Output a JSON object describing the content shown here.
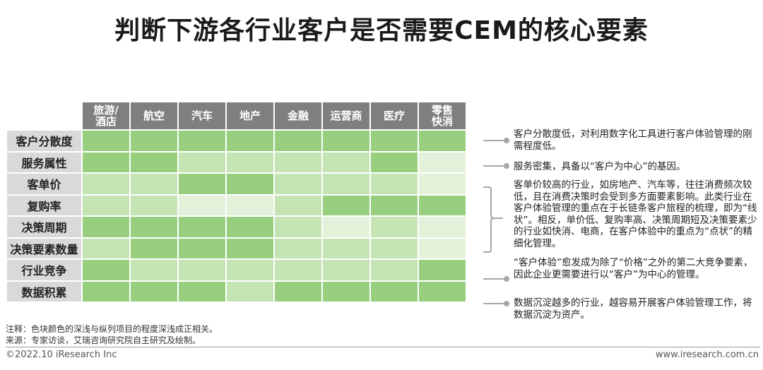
{
  "title": "判断下游各行业客户是否需要CEM的核心要素",
  "chart_data": {
    "type": "heatmap",
    "columns": [
      "旅游/\n酒店",
      "航空",
      "汽车",
      "地产",
      "金融",
      "运营商",
      "医疗",
      "零售\n快消"
    ],
    "rows": [
      "客户分散度",
      "服务属性",
      "客单价",
      "复购率",
      "决策周期",
      "决策要素数量",
      "行业竞争",
      "数据积累"
    ],
    "levels": [
      [
        3,
        3,
        3,
        3,
        3,
        3,
        3,
        3
      ],
      [
        3,
        3,
        2,
        2,
        2,
        2,
        3,
        1
      ],
      [
        2,
        2,
        3,
        3,
        2,
        2,
        2,
        1
      ],
      [
        2,
        2,
        1,
        1,
        2,
        3,
        3,
        3
      ],
      [
        3,
        3,
        3,
        3,
        2,
        1,
        2,
        1
      ],
      [
        2,
        3,
        3,
        3,
        2,
        2,
        2,
        1
      ],
      [
        3,
        2,
        2,
        2,
        2,
        2,
        2,
        3
      ],
      [
        3,
        3,
        3,
        2,
        3,
        3,
        3,
        3
      ]
    ],
    "colors": {
      "high": "#98cf7f",
      "mid": "#c5e4b3",
      "low": "#e3f1da",
      "row_header_bg": "#d9d9d9",
      "col_header_bg": "#7f7f7f"
    }
  },
  "notes": [
    "客户分散度低，对利用数字化工具进行客户体验管理的刚需程度低。",
    "服务密集，具备以“客户为中心”的基因。",
    "客单价较高的行业，如房地产、汽车等，往往消费频次较低，且在消费决策时会受到多方面要素影响。此类行业在客户体验管理的重点在于长链条客户旅程的梳理，即为“线状”。相反，单价低、复购率高、决策周期短及决策要素少的行业如快消、电商，在客户体验中的重点为“点状”的精细化管理。",
    "“客户体验”愈发成为除了“价格”之外的第二大竞争要素，因此企业更需要进行以“客户”为中心的管理。",
    "数据沉淀越多的行业，越容易开展客户体验管理工作，将数据沉淀为资产。"
  ],
  "footnote_1": "注释：色块颜色的深浅与纵列项目的程度深浅成正相关。",
  "footnote_2": "来源：专家访谈，艾瑞咨询研究院自主研究及绘制。",
  "copyright": "©2022.10 iResearch Inc",
  "website": "www.iresearch.com.cn"
}
